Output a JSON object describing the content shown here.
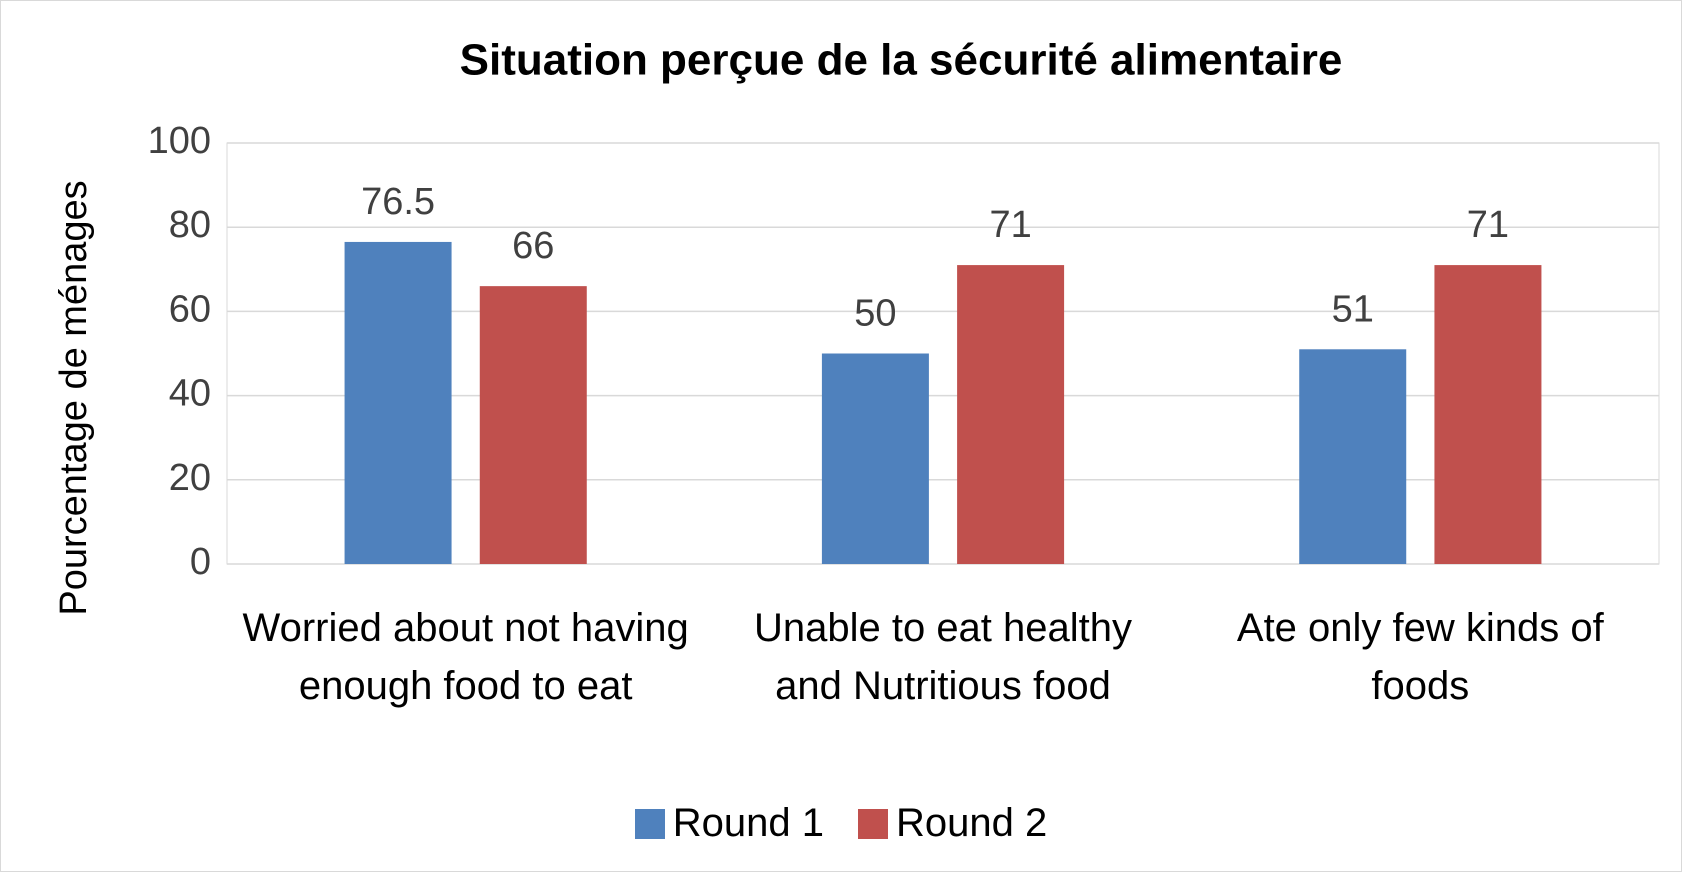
{
  "chart_data": {
    "type": "bar",
    "title": "Situation perçue de la sécurité alimentaire",
    "y_label": "Pourcentage de ménages",
    "categories": [
      "Worried about not having enough food to eat",
      "Unable to eat healthy and Nutritious food",
      "Ate only few kinds of foods"
    ],
    "series": [
      {
        "name": "Round 1",
        "color": "#4f81bd",
        "label_color": "#404040",
        "values": [
          76.5,
          50,
          51
        ]
      },
      {
        "name": "Round 2",
        "color": "#c0504d",
        "label_color": "#c00000",
        "values": [
          66,
          71,
          71
        ]
      }
    ],
    "ylim": [
      0,
      100
    ],
    "yticks": [
      0,
      20,
      40,
      60,
      80,
      100
    ],
    "grid": true,
    "legend": "bottom"
  }
}
